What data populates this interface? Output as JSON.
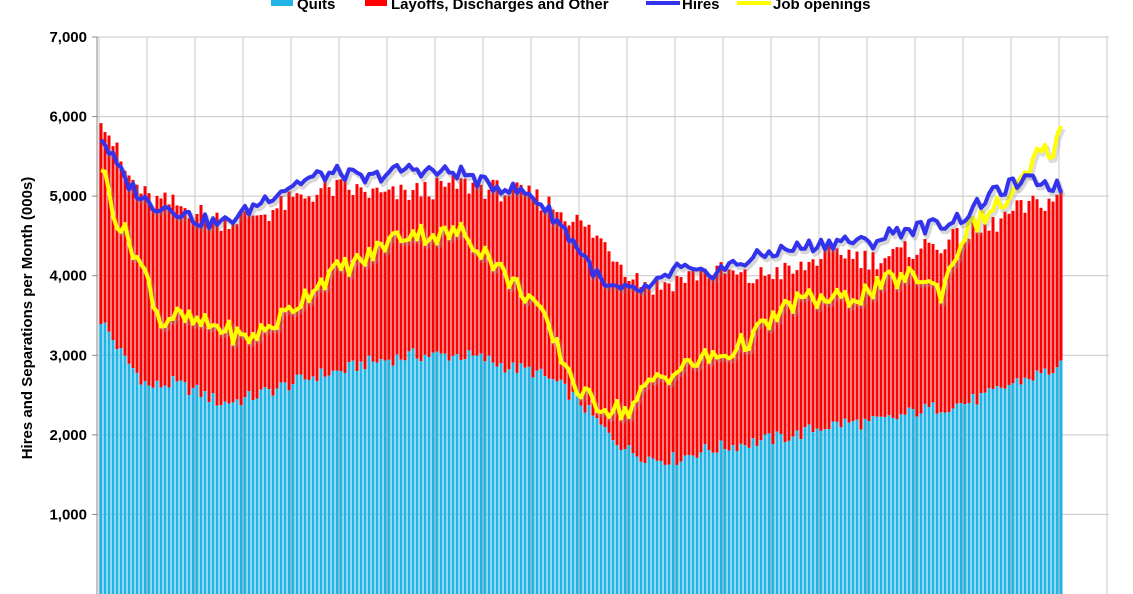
{
  "chart_data": {
    "type": "bar",
    "ylabel": "Hires and Separations per Month (000s)",
    "ylim": [
      0,
      7000
    ],
    "yticks": [
      1000,
      2000,
      3000,
      4000,
      5000,
      6000,
      7000
    ],
    "ytick_labels": [
      "1,000",
      "2,000",
      "3,000",
      "4,000",
      "5,000",
      "6,000",
      "7,000"
    ],
    "grid": true,
    "legend_position": "top",
    "x_months": 241,
    "x_gridline_every_months": 12,
    "legend": [
      {
        "key": "quits",
        "label": "Quits",
        "color": "#1fb3e6",
        "style": "bar"
      },
      {
        "key": "layoffs",
        "label": "Layoffs, Discharges and Other",
        "color": "#ff0000",
        "style": "bar"
      },
      {
        "key": "hires",
        "label": "Hires",
        "color": "#3333ee",
        "style": "line"
      },
      {
        "key": "openings",
        "label": "Job openings",
        "color": "#ffff00",
        "style": "line"
      }
    ],
    "series": [
      {
        "key": "quits",
        "type": "stacked-bar",
        "anchors": [
          [
            0,
            3450
          ],
          [
            6,
            2950
          ],
          [
            12,
            2600
          ],
          [
            18,
            2650
          ],
          [
            24,
            2550
          ],
          [
            30,
            2400
          ],
          [
            36,
            2450
          ],
          [
            42,
            2550
          ],
          [
            48,
            2650
          ],
          [
            54,
            2750
          ],
          [
            60,
            2800
          ],
          [
            66,
            2900
          ],
          [
            72,
            2950
          ],
          [
            78,
            3000
          ],
          [
            84,
            3000
          ],
          [
            90,
            3000
          ],
          [
            96,
            2950
          ],
          [
            102,
            2850
          ],
          [
            108,
            2800
          ],
          [
            114,
            2650
          ],
          [
            120,
            2400
          ],
          [
            126,
            2050
          ],
          [
            132,
            1800
          ],
          [
            138,
            1700
          ],
          [
            144,
            1700
          ],
          [
            150,
            1800
          ],
          [
            156,
            1850
          ],
          [
            162,
            1900
          ],
          [
            168,
            1950
          ],
          [
            174,
            2000
          ],
          [
            180,
            2100
          ],
          [
            186,
            2150
          ],
          [
            192,
            2150
          ],
          [
            198,
            2200
          ],
          [
            204,
            2300
          ],
          [
            210,
            2350
          ],
          [
            216,
            2400
          ],
          [
            222,
            2500
          ],
          [
            228,
            2650
          ],
          [
            234,
            2750
          ],
          [
            240,
            2850
          ]
        ]
      },
      {
        "key": "separations_total",
        "type": "stacked-bar-top",
        "anchors": [
          [
            0,
            6050
          ],
          [
            6,
            5300
          ],
          [
            12,
            4950
          ],
          [
            18,
            4900
          ],
          [
            24,
            4800
          ],
          [
            30,
            4700
          ],
          [
            36,
            4750
          ],
          [
            42,
            4800
          ],
          [
            48,
            4950
          ],
          [
            54,
            5050
          ],
          [
            60,
            5100
          ],
          [
            66,
            5050
          ],
          [
            72,
            5000
          ],
          [
            78,
            5050
          ],
          [
            84,
            5100
          ],
          [
            90,
            5150
          ],
          [
            96,
            5100
          ],
          [
            102,
            5050
          ],
          [
            108,
            5000
          ],
          [
            114,
            4850
          ],
          [
            120,
            4650
          ],
          [
            126,
            4400
          ],
          [
            132,
            4050
          ],
          [
            138,
            3850
          ],
          [
            144,
            3950
          ],
          [
            150,
            4050
          ],
          [
            156,
            4050
          ],
          [
            162,
            3950
          ],
          [
            168,
            4050
          ],
          [
            174,
            4050
          ],
          [
            180,
            4250
          ],
          [
            186,
            4300
          ],
          [
            192,
            4200
          ],
          [
            198,
            4250
          ],
          [
            204,
            4350
          ],
          [
            210,
            4400
          ],
          [
            216,
            4500
          ],
          [
            222,
            4600
          ],
          [
            228,
            4800
          ],
          [
            234,
            4900
          ],
          [
            240,
            5000
          ]
        ]
      },
      {
        "key": "hires",
        "type": "line",
        "anchors": [
          [
            0,
            5750
          ],
          [
            6,
            5200
          ],
          [
            12,
            4900
          ],
          [
            18,
            4850
          ],
          [
            24,
            4700
          ],
          [
            30,
            4650
          ],
          [
            36,
            4800
          ],
          [
            42,
            5000
          ],
          [
            48,
            5150
          ],
          [
            54,
            5250
          ],
          [
            60,
            5300
          ],
          [
            66,
            5200
          ],
          [
            72,
            5300
          ],
          [
            78,
            5350
          ],
          [
            84,
            5300
          ],
          [
            90,
            5300
          ],
          [
            96,
            5150
          ],
          [
            102,
            5100
          ],
          [
            108,
            5000
          ],
          [
            114,
            4700
          ],
          [
            120,
            4300
          ],
          [
            126,
            3850
          ],
          [
            132,
            3800
          ],
          [
            138,
            3850
          ],
          [
            144,
            4100
          ],
          [
            150,
            4000
          ],
          [
            156,
            4100
          ],
          [
            162,
            4200
          ],
          [
            168,
            4300
          ],
          [
            174,
            4350
          ],
          [
            180,
            4400
          ],
          [
            186,
            4450
          ],
          [
            192,
            4400
          ],
          [
            198,
            4550
          ],
          [
            204,
            4600
          ],
          [
            210,
            4650
          ],
          [
            216,
            4750
          ],
          [
            222,
            5000
          ],
          [
            228,
            5150
          ],
          [
            234,
            5200
          ],
          [
            240,
            5100
          ]
        ]
      },
      {
        "key": "openings",
        "type": "line",
        "anchors": [
          [
            0,
            5400
          ],
          [
            4,
            4700
          ],
          [
            8,
            4350
          ],
          [
            12,
            3900
          ],
          [
            15,
            3400
          ],
          [
            18,
            3500
          ],
          [
            24,
            3400
          ],
          [
            30,
            3350
          ],
          [
            36,
            3200
          ],
          [
            42,
            3350
          ],
          [
            48,
            3600
          ],
          [
            54,
            3900
          ],
          [
            60,
            4100
          ],
          [
            66,
            4200
          ],
          [
            72,
            4450
          ],
          [
            78,
            4550
          ],
          [
            84,
            4500
          ],
          [
            90,
            4550
          ],
          [
            96,
            4300
          ],
          [
            102,
            3950
          ],
          [
            108,
            3700
          ],
          [
            114,
            3100
          ],
          [
            117,
            2800
          ],
          [
            120,
            2500
          ],
          [
            126,
            2350
          ],
          [
            132,
            2300
          ],
          [
            138,
            2700
          ],
          [
            144,
            2800
          ],
          [
            150,
            2950
          ],
          [
            156,
            3000
          ],
          [
            162,
            3200
          ],
          [
            168,
            3450
          ],
          [
            174,
            3700
          ],
          [
            180,
            3700
          ],
          [
            186,
            3700
          ],
          [
            192,
            3800
          ],
          [
            198,
            3950
          ],
          [
            204,
            4000
          ],
          [
            210,
            3800
          ],
          [
            216,
            4550
          ],
          [
            222,
            4800
          ],
          [
            228,
            5000
          ],
          [
            232,
            5300
          ],
          [
            234,
            5500
          ],
          [
            238,
            5600
          ],
          [
            240,
            5800
          ]
        ]
      }
    ]
  }
}
